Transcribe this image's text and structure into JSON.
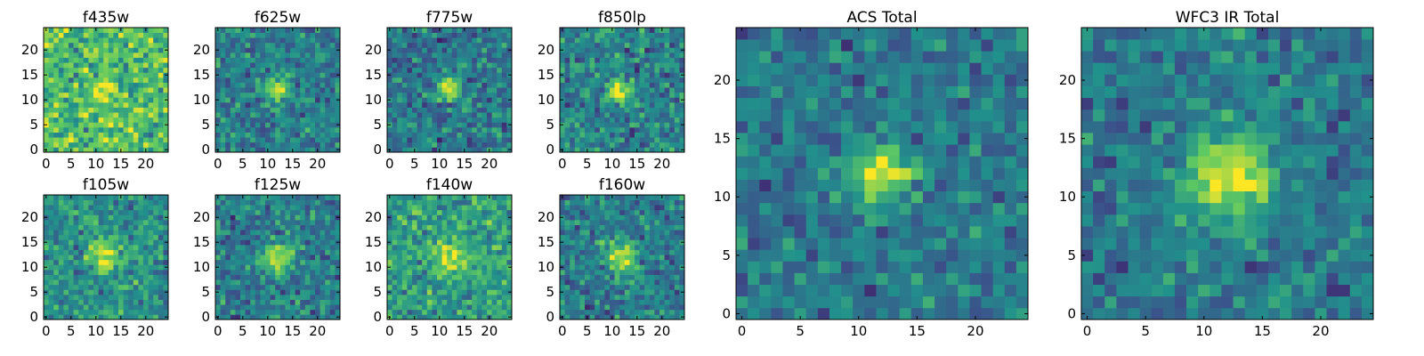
{
  "figure": {
    "colormap": "viridis",
    "colormap_stops": [
      "#440154",
      "#3b528b",
      "#21918c",
      "#5ec962",
      "#fde725"
    ],
    "cell_edge_color": "#000000"
  },
  "chart_data": [
    {
      "type": "heatmap",
      "title": "f435w",
      "grid_size": 25,
      "xlim": [
        0,
        24
      ],
      "ylim": [
        0,
        24
      ],
      "xticks": [
        0,
        5,
        10,
        15,
        20
      ],
      "yticks": [
        0,
        5,
        10,
        15,
        20
      ],
      "source_center": [
        11.5,
        12
      ],
      "source_sigma": 1.6,
      "source_peak": 0.98,
      "background_level": 0.7,
      "noise_level": 0.18
    },
    {
      "type": "heatmap",
      "title": "f625w",
      "grid_size": 25,
      "xlim": [
        0,
        24
      ],
      "ylim": [
        0,
        24
      ],
      "xticks": [
        0,
        5,
        10,
        15,
        20
      ],
      "yticks": [
        0,
        5,
        10,
        15,
        20
      ],
      "source_center": [
        11.8,
        12
      ],
      "source_sigma": 1.6,
      "source_peak": 0.98,
      "background_level": 0.42,
      "noise_level": 0.14
    },
    {
      "type": "heatmap",
      "title": "f775w",
      "grid_size": 25,
      "xlim": [
        0,
        24
      ],
      "ylim": [
        0,
        24
      ],
      "xticks": [
        0,
        5,
        10,
        15,
        20
      ],
      "yticks": [
        0,
        5,
        10,
        15,
        20
      ],
      "source_center": [
        11.8,
        12
      ],
      "source_sigma": 1.6,
      "source_peak": 0.98,
      "background_level": 0.4,
      "noise_level": 0.15
    },
    {
      "type": "heatmap",
      "title": "f850lp",
      "grid_size": 25,
      "xlim": [
        0,
        24
      ],
      "ylim": [
        0,
        24
      ],
      "xticks": [
        0,
        5,
        10,
        15,
        20
      ],
      "yticks": [
        0,
        5,
        10,
        15,
        20
      ],
      "source_center": [
        11.5,
        12
      ],
      "source_sigma": 1.6,
      "source_peak": 0.98,
      "background_level": 0.44,
      "noise_level": 0.15
    },
    {
      "type": "heatmap",
      "title": "f105w",
      "grid_size": 25,
      "xlim": [
        0,
        24
      ],
      "ylim": [
        0,
        24
      ],
      "xticks": [
        0,
        5,
        10,
        15,
        20
      ],
      "yticks": [
        0,
        5,
        10,
        15,
        20
      ],
      "source_center": [
        11.5,
        12.5
      ],
      "source_sigma": 2.1,
      "source_peak": 0.98,
      "background_level": 0.5,
      "noise_level": 0.14
    },
    {
      "type": "heatmap",
      "title": "f125w",
      "grid_size": 25,
      "xlim": [
        0,
        24
      ],
      "ylim": [
        0,
        24
      ],
      "xticks": [
        0,
        5,
        10,
        15,
        20
      ],
      "yticks": [
        0,
        5,
        10,
        15,
        20
      ],
      "source_center": [
        11.8,
        12
      ],
      "source_sigma": 2.1,
      "source_peak": 0.98,
      "background_level": 0.42,
      "noise_level": 0.14
    },
    {
      "type": "heatmap",
      "title": "f140w",
      "grid_size": 25,
      "xlim": [
        0,
        24
      ],
      "ylim": [
        0,
        24
      ],
      "xticks": [
        0,
        5,
        10,
        15,
        20
      ],
      "yticks": [
        0,
        5,
        10,
        15,
        20
      ],
      "source_center": [
        11.8,
        12
      ],
      "source_sigma": 2.3,
      "source_peak": 0.95,
      "background_level": 0.55,
      "noise_level": 0.15
    },
    {
      "type": "heatmap",
      "title": "f160w",
      "grid_size": 25,
      "xlim": [
        0,
        24
      ],
      "ylim": [
        0,
        24
      ],
      "xticks": [
        0,
        5,
        10,
        15,
        20
      ],
      "yticks": [
        0,
        5,
        10,
        15,
        20
      ],
      "source_center": [
        11.8,
        12
      ],
      "source_sigma": 2.1,
      "source_peak": 0.98,
      "background_level": 0.42,
      "noise_level": 0.14
    },
    {
      "type": "heatmap",
      "title": "ACS Total",
      "grid_size": 25,
      "xlim": [
        0,
        24
      ],
      "ylim": [
        0,
        24
      ],
      "xticks": [
        0,
        5,
        10,
        15,
        20
      ],
      "yticks": [
        0,
        5,
        10,
        15,
        20
      ],
      "source_center": [
        11.8,
        12
      ],
      "source_sigma": 1.8,
      "source_peak": 0.98,
      "background_level": 0.4,
      "noise_level": 0.12
    },
    {
      "type": "heatmap",
      "title": "WFC3 IR Total",
      "grid_size": 25,
      "xlim": [
        0,
        24
      ],
      "ylim": [
        0,
        24
      ],
      "xticks": [
        0,
        5,
        10,
        15,
        20
      ],
      "yticks": [
        0,
        5,
        10,
        15,
        20
      ],
      "source_center": [
        12,
        12
      ],
      "source_sigma": 2.6,
      "source_peak": 0.98,
      "background_level": 0.4,
      "noise_level": 0.12
    }
  ]
}
